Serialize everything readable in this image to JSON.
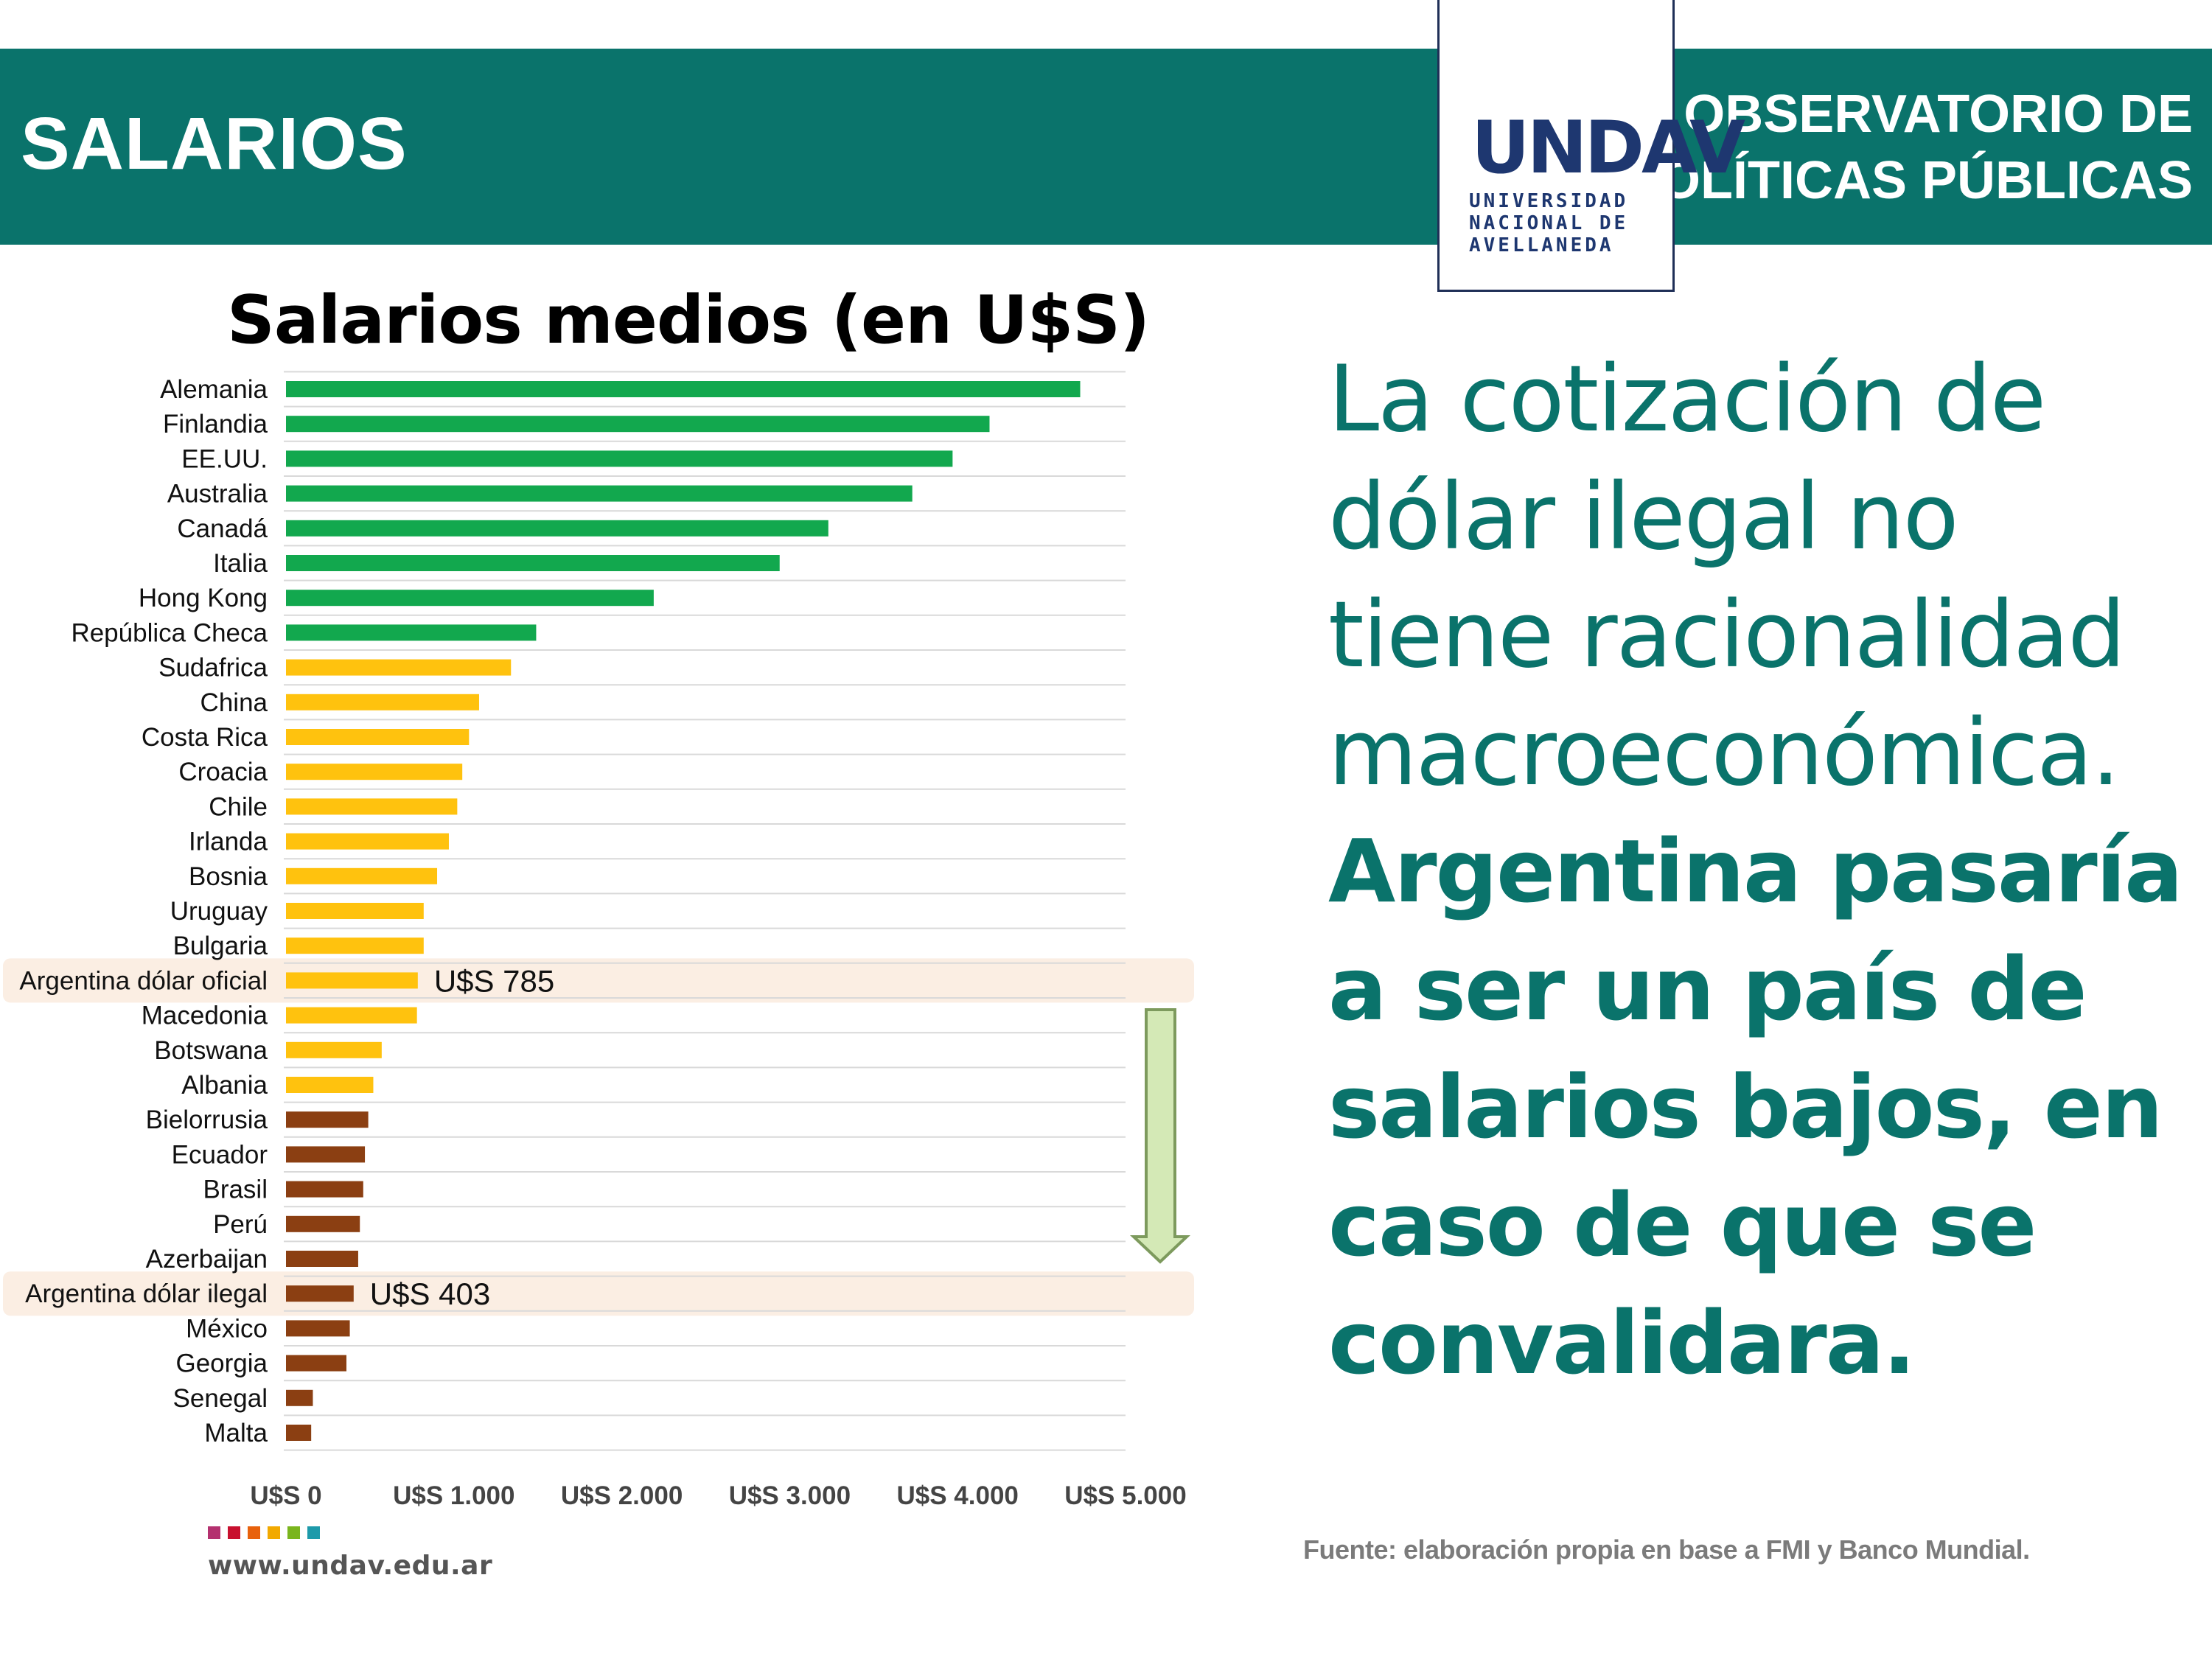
{
  "header": {
    "section_title": "SALARIOS",
    "observatorio_line1": "OBSERVATORIO DE",
    "observatorio_line2": "POLÍTICAS PÚBLICAS",
    "logo_text": "UNDAV",
    "logo_caption_line1": "UNIVERSIDAD",
    "logo_caption_line2": "NACIONAL DE",
    "logo_caption_line3": "AVELLANEDA",
    "band_color": "#0a736b"
  },
  "chart_data": {
    "type": "bar",
    "orientation": "horizontal",
    "title": "Salarios medios (en U$S)",
    "categories": [
      "Alemania",
      "Finlandia",
      "EE.UU.",
      "Australia",
      "Canadá",
      "Italia",
      "Hong Kong",
      "República Checa",
      "Sudafrica",
      "China",
      "Costa Rica",
      "Croacia",
      "Chile",
      "Irlanda",
      "Bosnia",
      "Uruguay",
      "Bulgaria",
      "Argentina dólar oficial",
      "Macedonia",
      "Botswana",
      "Albania",
      "Bielorrusia",
      "Ecuador",
      "Brasil",
      "Perú",
      "Azerbaijan",
      "Argentina dólar ilegal",
      "México",
      "Georgia",
      "Senegal",
      "Malta"
    ],
    "values": [
      4730,
      4190,
      3970,
      3730,
      3230,
      2940,
      2190,
      1490,
      1340,
      1150,
      1090,
      1050,
      1020,
      970,
      900,
      820,
      820,
      785,
      780,
      570,
      520,
      490,
      470,
      460,
      440,
      430,
      403,
      380,
      360,
      160,
      150
    ],
    "tiers": [
      "high",
      "high",
      "high",
      "high",
      "high",
      "high",
      "high",
      "high",
      "mid",
      "mid",
      "mid",
      "mid",
      "mid",
      "mid",
      "mid",
      "mid",
      "mid",
      "mid",
      "mid",
      "mid",
      "mid",
      "low",
      "low",
      "low",
      "low",
      "low",
      "low",
      "low",
      "low",
      "low",
      "low"
    ],
    "colors": {
      "high": "#12a84e",
      "mid": "#ffc20e",
      "low": "#8b3f12"
    },
    "xlim": [
      0,
      5000
    ],
    "xticks": [
      0,
      1000,
      2000,
      3000,
      4000,
      5000
    ],
    "xtick_labels": [
      "U$S 0",
      "U$S 1.000",
      "U$S 2.000",
      "U$S 3.000",
      "U$S 4.000",
      "U$S 5.000"
    ],
    "highlights": [
      {
        "category": "Argentina dólar oficial",
        "label": "U$S 785"
      },
      {
        "category": "Argentina dólar ilegal",
        "label": "U$S 403"
      }
    ],
    "grid": true
  },
  "main_text": {
    "light_lines": [
      "La cotización de",
      "dólar ilegal no",
      "tiene racionalidad",
      "macroeconómica."
    ],
    "bold_lines": [
      "Argentina pasaría",
      "a ser un país de",
      "salarios bajos, en",
      "caso de que se",
      "convalidara."
    ]
  },
  "footer": {
    "source": "Fuente: elaboración propia en base a FMI y Banco Mundial.",
    "website": "www.undav.edu.ar",
    "dot_colors": [
      "#b4316f",
      "#c8102e",
      "#e8610c",
      "#f2a900",
      "#7ab51d",
      "#1d9aaa"
    ]
  }
}
